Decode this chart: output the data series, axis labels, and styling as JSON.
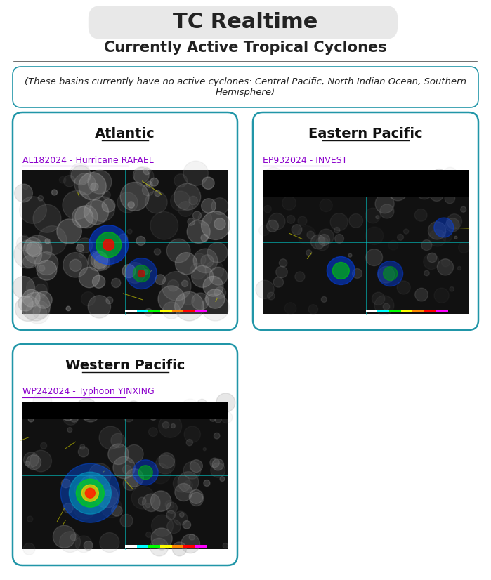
{
  "title_box_text": "TC Realtime",
  "subtitle_text": "Currently Active Tropical Cyclones",
  "inactive_basins_text": "(These basins currently have no active cyclones: Central Pacific, North Indian Ocean, Southern\nHemisphere)",
  "bg_color": "#ffffff",
  "title_box_bg": "#e8e8e8",
  "divider_color": "#555555",
  "panel_border_color": "#2196a8",
  "panel_bg": "#ffffff",
  "inactive_border_color": "#2196a8",
  "panels": [
    {
      "id": "atlantic",
      "title": "Atlantic",
      "link_text": "AL182024 - Hurricane RAFAEL",
      "link_color": "#8b00cc"
    },
    {
      "id": "eastern_pacific",
      "title": "Eastern Pacific",
      "link_text": "EP932024 - INVEST",
      "link_color": "#8b00cc"
    },
    {
      "id": "western_pacific",
      "title": "Western Pacific",
      "link_text": "WP242024 - Typhoon YINXING",
      "link_color": "#8b00cc"
    }
  ]
}
